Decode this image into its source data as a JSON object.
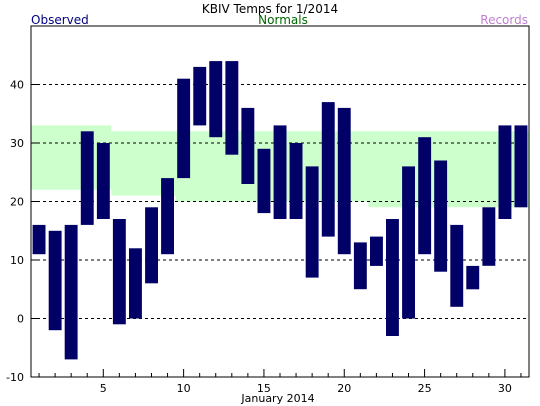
{
  "chart_data": {
    "type": "bar",
    "title": "KBIV Temps for 1/2014",
    "xlabel": "January 2014",
    "ylabel": "",
    "legend": [
      "Observed",
      "Normals",
      "Records"
    ],
    "x_ticks": [
      5,
      10,
      15,
      20,
      25,
      30
    ],
    "y_ticks": [
      -10,
      0,
      10,
      20,
      30,
      40
    ],
    "ylim": [
      -10,
      50
    ],
    "xlim": [
      0.5,
      31.5
    ],
    "grid": "horizontal dashed",
    "days": [
      1,
      2,
      3,
      4,
      5,
      6,
      7,
      8,
      9,
      10,
      11,
      12,
      13,
      14,
      15,
      16,
      17,
      18,
      19,
      20,
      21,
      22,
      23,
      24,
      25,
      26,
      27,
      28,
      29,
      30,
      31
    ],
    "observed_high": [
      16,
      15,
      16,
      32,
      30,
      17,
      12,
      19,
      24,
      41,
      43,
      44,
      44,
      36,
      29,
      33,
      30,
      26,
      37,
      36,
      13,
      14,
      17,
      26,
      31,
      27,
      16,
      9,
      19,
      33,
      33
    ],
    "observed_low": [
      11,
      -2,
      -7,
      16,
      17,
      -1,
      0,
      6,
      11,
      24,
      33,
      31,
      28,
      23,
      18,
      17,
      17,
      7,
      14,
      11,
      5,
      9,
      -3,
      0,
      11,
      8,
      2,
      5,
      9,
      17,
      19
    ],
    "normal_high": [
      33,
      33,
      33,
      33,
      33,
      32,
      32,
      32,
      32,
      32,
      32,
      32,
      32,
      32,
      32,
      32,
      32,
      32,
      32,
      32,
      32,
      32,
      32,
      32,
      32,
      32,
      32,
      32,
      32,
      32,
      32
    ],
    "normal_low": [
      22,
      22,
      22,
      22,
      22,
      21,
      21,
      21,
      21,
      20,
      20,
      20,
      20,
      20,
      20,
      20,
      20,
      20,
      20,
      20,
      20,
      19,
      19,
      19,
      19,
      19,
      19,
      19,
      19,
      19,
      19
    ],
    "colors": {
      "observed": "#000066",
      "normals_band": "#ccffcc",
      "observed_legend": "#000080",
      "normals_legend": "#006600",
      "records_legend": "#c080d0"
    }
  }
}
